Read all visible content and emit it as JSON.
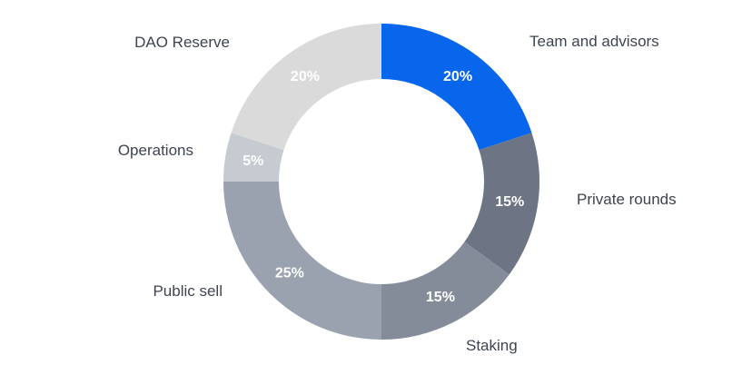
{
  "chart_data": {
    "type": "pie",
    "variant": "donut",
    "title": "",
    "categories": [
      "Team and advisors",
      "Private rounds",
      "Staking",
      "Public sell",
      "Operations",
      "DAO Reserve"
    ],
    "values": [
      20,
      15,
      15,
      25,
      5,
      20
    ],
    "value_labels": [
      "20%",
      "15%",
      "15%",
      "25%",
      "5%",
      "20%"
    ],
    "colors": [
      "#0766ec",
      "#6d7584",
      "#848c9a",
      "#99a2ae",
      "#c6cad1",
      "#dadada"
    ],
    "value_label_colors": [
      "#ffffff",
      "#ffffff",
      "#ffffff",
      "#ffffff",
      "#ffffff",
      "#ffffff"
    ],
    "start_angle": "12 o'clock",
    "direction": "clockwise"
  }
}
